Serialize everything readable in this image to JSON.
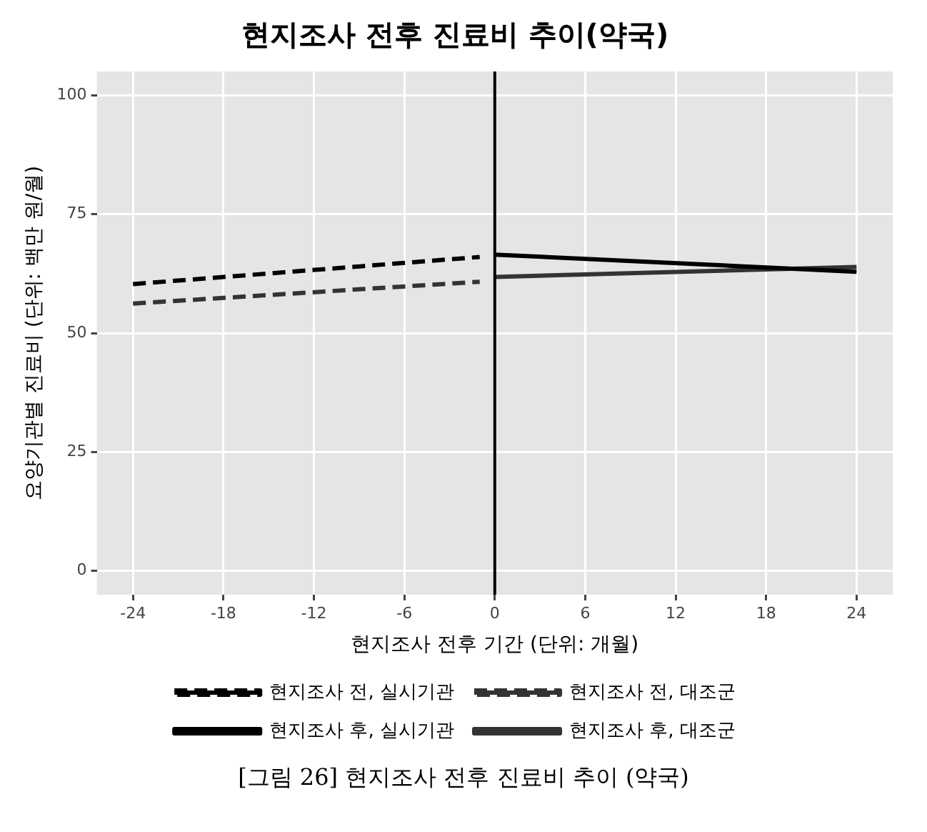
{
  "chart_data": {
    "type": "line",
    "title": "현지조사 전후 진료비 추이(약국)",
    "xlabel": "현지조사 전후 기간 (단위: 개월)",
    "ylabel": "요양기관별 진료비 (단위: 백만 원/월)",
    "series": [
      {
        "name": "현지조사 전, 실시기관",
        "color": "#000000",
        "line_style": "dashed",
        "x": [
          -24,
          -1
        ],
        "values": [
          60.3,
          66.0
        ]
      },
      {
        "name": "현지조사 전, 대조군",
        "color": "#333333",
        "line_style": "dashed",
        "x": [
          -24,
          -1
        ],
        "values": [
          56.2,
          60.8
        ]
      },
      {
        "name": "현지조사 후, 실시기관",
        "color": "#000000",
        "line_style": "solid",
        "x": [
          0,
          24
        ],
        "values": [
          66.5,
          62.9
        ]
      },
      {
        "name": "현지조사 후, 대조군",
        "color": "#333333",
        "line_style": "solid",
        "x": [
          0,
          24
        ],
        "values": [
          61.8,
          63.9
        ]
      }
    ],
    "xlim": [
      -26.4,
      26.4
    ],
    "xticks": [
      -24,
      -18,
      -12,
      -6,
      0,
      6,
      12,
      18,
      24
    ],
    "ylim": [
      -5,
      105
    ],
    "yticks": [
      0,
      25,
      50,
      75,
      100
    ],
    "ref_lines": [
      {
        "axis": "x",
        "value": 0,
        "color": "#000000"
      }
    ],
    "grid": true,
    "legend": "bottom",
    "marker": "none",
    "annotations": [
      "[그림 26] 현지조사 전후 진료비 추이 (약국)"
    ]
  }
}
